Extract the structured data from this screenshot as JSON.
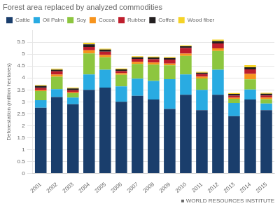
{
  "chart_data": {
    "type": "bar",
    "stacked": true,
    "title": "Forest area replaced by analyzed commodities",
    "ylabel": "Deforestation (million hectares)",
    "annotations": [
      "■ WORLD RESOURCES INSTITUTE"
    ],
    "categories": [
      "2001",
      "2002",
      "2003",
      "2004",
      "2005",
      "2006",
      "2007",
      "2008",
      "2009",
      "2010",
      "2011",
      "2012",
      "2013",
      "2014",
      "2015"
    ],
    "series": [
      {
        "name": "Cattle",
        "color": "#1a3e6c",
        "values": [
          2.75,
          3.2,
          2.9,
          3.5,
          3.6,
          3.0,
          3.25,
          3.1,
          2.7,
          3.3,
          2.65,
          3.3,
          2.4,
          3.1,
          2.65
        ]
      },
      {
        "name": "Oil Palm",
        "color": "#29abe2",
        "values": [
          0.32,
          0.33,
          0.28,
          0.65,
          0.75,
          0.65,
          0.72,
          0.78,
          1.25,
          0.85,
          0.85,
          1.05,
          0.55,
          0.42,
          0.28
        ]
      },
      {
        "name": "Soy",
        "color": "#8dc63f",
        "values": [
          0.38,
          0.52,
          0.18,
          0.88,
          0.52,
          0.48,
          0.62,
          0.68,
          0.58,
          0.78,
          0.48,
          0.78,
          0.18,
          0.42,
          0.18
        ]
      },
      {
        "name": "Cocoa",
        "color": "#f7941d",
        "values": [
          0.04,
          0.09,
          0.04,
          0.13,
          0.09,
          0.07,
          0.09,
          0.09,
          0.07,
          0.09,
          0.07,
          0.11,
          0.04,
          0.23,
          0.07
        ]
      },
      {
        "name": "Rubber",
        "color": "#be1e2d",
        "values": [
          0.09,
          0.14,
          0.09,
          0.14,
          0.14,
          0.09,
          0.12,
          0.14,
          0.17,
          0.24,
          0.11,
          0.21,
          0.09,
          0.19,
          0.09
        ]
      },
      {
        "name": "Coffee",
        "color": "#231f20",
        "values": [
          0.09,
          0.07,
          0.07,
          0.11,
          0.09,
          0.07,
          0.07,
          0.07,
          0.07,
          0.07,
          0.06,
          0.09,
          0.07,
          0.09,
          0.07
        ]
      },
      {
        "name": "Wood fiber",
        "color": "#f5d327",
        "values": [
          0.04,
          0.04,
          0.04,
          0.07,
          0.04,
          0.04,
          0.04,
          0.04,
          0.04,
          0.04,
          0.04,
          0.07,
          0.04,
          0.09,
          0.04
        ]
      }
    ],
    "ylim": [
      0,
      6
    ],
    "yticks": [
      0,
      0.5,
      1.0,
      1.5,
      2.0,
      2.5,
      3.0,
      3.5,
      4.0,
      4.5,
      5.0,
      5.5
    ],
    "grid": true,
    "legend": "top"
  }
}
